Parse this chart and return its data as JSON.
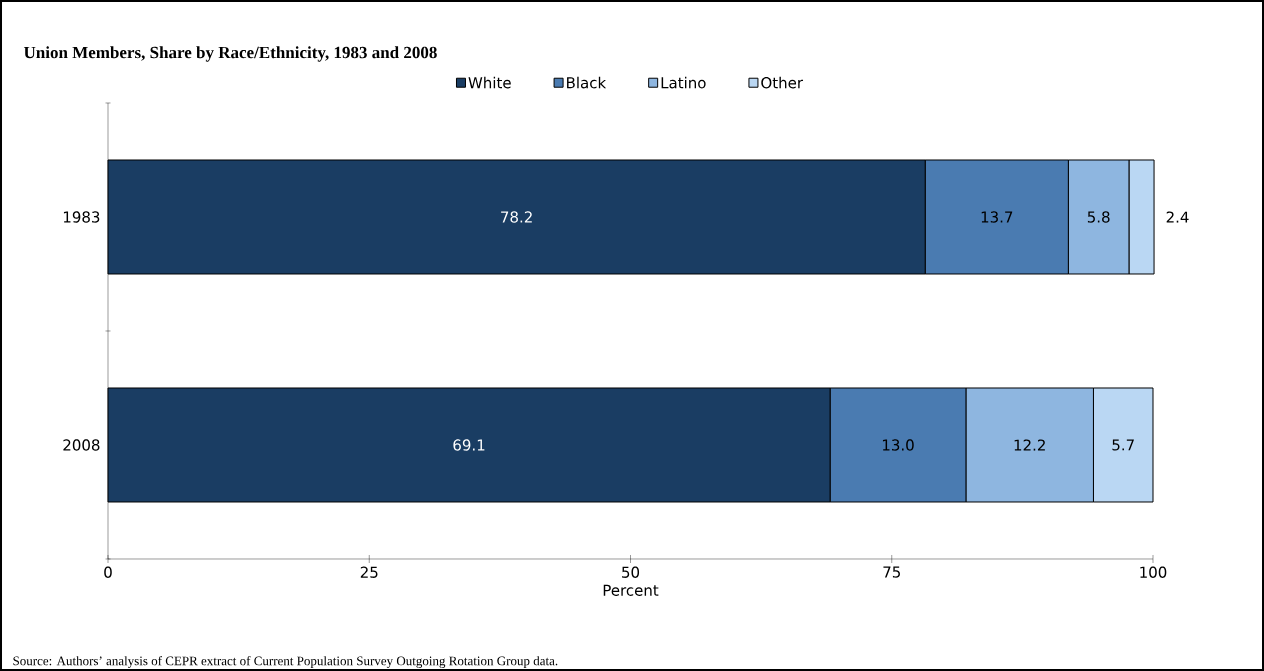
{
  "chart_data": {
    "type": "bar",
    "orientation": "horizontal",
    "stacked": true,
    "title": "Union Members, Share by Race/Ethnicity, 1983 and 2008",
    "xlabel": "Percent",
    "categories": [
      "1983",
      "2008"
    ],
    "series": [
      {
        "name": "White",
        "color": "#1a3d63",
        "values": [
          78.2,
          69.1
        ],
        "value_labels": [
          "78.2",
          "69.1"
        ]
      },
      {
        "name": "Black",
        "color": "#4a7bb1",
        "values": [
          13.7,
          13.0
        ],
        "value_labels": [
          "13.7",
          "13.0"
        ]
      },
      {
        "name": "Latino",
        "color": "#8eb6e0",
        "values": [
          5.8,
          12.2
        ],
        "value_labels": [
          "5.8",
          "12.2"
        ]
      },
      {
        "name": "Other",
        "color": "#bad7f3",
        "values": [
          2.4,
          5.7
        ],
        "value_labels": [
          "2.4",
          "5.7"
        ]
      }
    ],
    "xlim": [
      0,
      100
    ],
    "xticks": [
      0,
      25,
      50,
      75,
      100
    ],
    "legend": "top",
    "annotations": [
      "Source: Authors’ analysis of CEPR extract of Current Population Survey Outgoing Rotation Group data."
    ]
  }
}
